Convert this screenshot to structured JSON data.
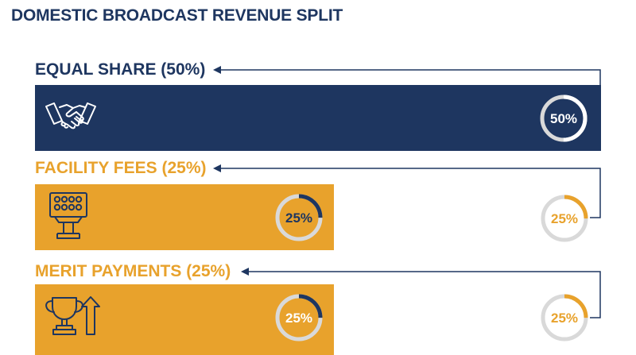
{
  "title": "DOMESTIC BROADCAST REVENUE SPLIT",
  "colors": {
    "navy": "#1e3660",
    "gold": "#e8a22c",
    "ring_track": "#d9d9d9",
    "white": "#ffffff"
  },
  "sections": [
    {
      "label": "EQUAL SHARE (50%)",
      "icon": "handshake-icon",
      "share_percent": 50,
      "bar_ring_text": "50%",
      "side_ring_text": ""
    },
    {
      "label": "FACILITY FEES (25%)",
      "icon": "floodlight-icon",
      "share_percent": 25,
      "bar_ring_text": "25%",
      "side_ring_text": "25%"
    },
    {
      "label": "MERIT PAYMENTS (25%)",
      "icon": "trophy-arrow-icon",
      "share_percent": 25,
      "bar_ring_text": "25%",
      "side_ring_text": "25%"
    }
  ]
}
